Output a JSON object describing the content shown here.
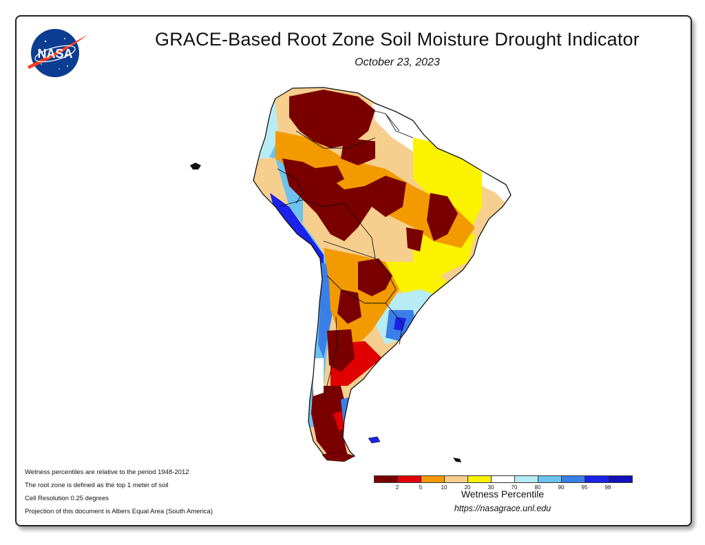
{
  "header": {
    "title": "GRACE-Based Root Zone Soil Moisture Drought Indicator",
    "date": "October 23, 2023",
    "logo_text": "NASA"
  },
  "notes": [
    "Wetness percentiles are relative to the period 1948-2012",
    "The root zone is defined as the top 1 meter of soil",
    "Cell Resolution 0.25 degrees",
    "Projection of this document is Albers Equal Area (South America)"
  ],
  "legend": {
    "title": "Wetness Percentile",
    "colors": [
      "#7a0000",
      "#e00000",
      "#f29a00",
      "#f6cf8e",
      "#fbf200",
      "#ffffff",
      "#b8ecf4",
      "#6cc3ee",
      "#3a7fe8",
      "#1b22ea",
      "#1111bb"
    ],
    "ticks": [
      "2",
      "5",
      "10",
      "20",
      "30",
      "70",
      "80",
      "90",
      "95",
      "98"
    ]
  },
  "footer": {
    "url": "https://nasagrace.unl.edu"
  },
  "map": {
    "region": "South America",
    "palette": {
      "dark_red": "#7a0000",
      "red": "#e00000",
      "orange": "#f29a00",
      "tan": "#f6cf8e",
      "yellow": "#fbf200",
      "white": "#ffffff",
      "light_blue": "#b8ecf4",
      "blue": "#3a7fe8",
      "dark_blue": "#1b22ea"
    }
  }
}
